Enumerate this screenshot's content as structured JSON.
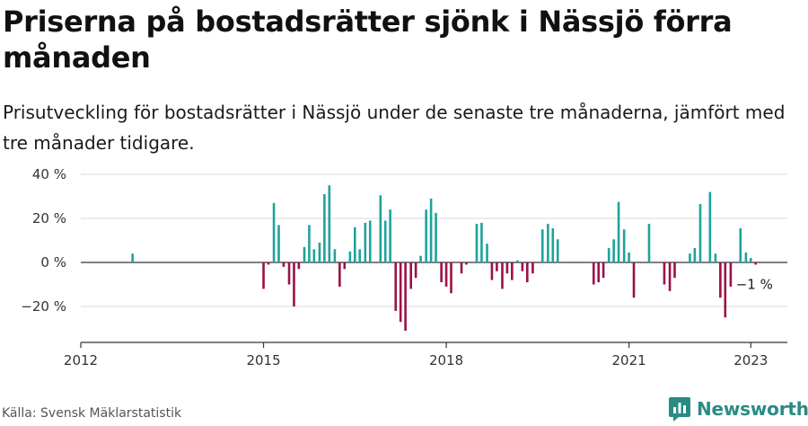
{
  "title": "Priserna på bostadsrätter sjönk i Nässjö förra månaden",
  "subtitle": "Prisutveckling för bostadsrätter i Nässjö under de senaste tre månaderna, jämfört med tre månader tidigare.",
  "source": "Källa: Svensk Mäklarstatistik",
  "brand": "Newsworthy",
  "colors": {
    "positive": "#1fa39b",
    "negative": "#9b1148",
    "grid": "#d9d9d9",
    "axis": "#333333",
    "brand": "#2a8b84"
  },
  "chart_data": {
    "type": "bar",
    "ylim": [
      -36,
      40
    ],
    "yticks": [
      40,
      20,
      0,
      -20
    ],
    "ytick_labels": [
      "40 %",
      "20 %",
      "0 %",
      "−20 %"
    ],
    "xlim": [
      2012.0,
      2023.6
    ],
    "xticks": [
      2012,
      2015,
      2018,
      2021,
      2023
    ],
    "xtick_labels": [
      "2012",
      "2015",
      "2018",
      "2021",
      "2023"
    ],
    "annotation": "−1 %",
    "series": [
      {
        "name": "Prisutveckling (%)",
        "points": [
          [
            2012.85,
            4
          ],
          [
            2015.0,
            -12
          ],
          [
            2015.08,
            -1
          ],
          [
            2015.17,
            27
          ],
          [
            2015.25,
            17
          ],
          [
            2015.33,
            -2
          ],
          [
            2015.42,
            -10
          ],
          [
            2015.5,
            -20
          ],
          [
            2015.58,
            -3
          ],
          [
            2015.67,
            7
          ],
          [
            2015.75,
            17
          ],
          [
            2015.83,
            6
          ],
          [
            2015.92,
            9
          ],
          [
            2016.0,
            31
          ],
          [
            2016.08,
            35
          ],
          [
            2016.17,
            6
          ],
          [
            2016.25,
            -11
          ],
          [
            2016.33,
            -3
          ],
          [
            2016.42,
            5
          ],
          [
            2016.5,
            16
          ],
          [
            2016.58,
            6
          ],
          [
            2016.67,
            18
          ],
          [
            2016.75,
            19
          ],
          [
            2016.83,
            0
          ],
          [
            2016.92,
            30.5
          ],
          [
            2017.0,
            19
          ],
          [
            2017.08,
            24
          ],
          [
            2017.17,
            -22
          ],
          [
            2017.25,
            -27
          ],
          [
            2017.33,
            -31
          ],
          [
            2017.42,
            -12
          ],
          [
            2017.5,
            -7
          ],
          [
            2017.58,
            3
          ],
          [
            2017.67,
            24
          ],
          [
            2017.75,
            29
          ],
          [
            2017.83,
            22.5
          ],
          [
            2017.92,
            -9
          ],
          [
            2018.0,
            -11
          ],
          [
            2018.08,
            -14
          ],
          [
            2018.17,
            0
          ],
          [
            2018.25,
            -5
          ],
          [
            2018.33,
            -1
          ],
          [
            2018.42,
            0
          ],
          [
            2018.5,
            17.5
          ],
          [
            2018.58,
            18
          ],
          [
            2018.67,
            8.5
          ],
          [
            2018.75,
            -8
          ],
          [
            2018.83,
            -4
          ],
          [
            2018.92,
            -12
          ],
          [
            2019.0,
            -5
          ],
          [
            2019.08,
            -8
          ],
          [
            2019.17,
            1
          ],
          [
            2019.25,
            -4
          ],
          [
            2019.33,
            -9
          ],
          [
            2019.42,
            -5
          ],
          [
            2019.5,
            0
          ],
          [
            2019.58,
            15
          ],
          [
            2019.67,
            17.5
          ],
          [
            2019.75,
            15.5
          ],
          [
            2019.83,
            10.5
          ],
          [
            2020.42,
            -10
          ],
          [
            2020.5,
            -9
          ],
          [
            2020.58,
            -7
          ],
          [
            2020.67,
            6.5
          ],
          [
            2020.75,
            10.5
          ],
          [
            2020.83,
            27.5
          ],
          [
            2020.92,
            15
          ],
          [
            2021.0,
            4.5
          ],
          [
            2021.08,
            -16
          ],
          [
            2021.33,
            17.5
          ],
          [
            2021.58,
            -10
          ],
          [
            2021.67,
            -13
          ],
          [
            2021.75,
            -7
          ],
          [
            2022.0,
            4
          ],
          [
            2022.08,
            6.5
          ],
          [
            2022.17,
            26.5
          ],
          [
            2022.33,
            32
          ],
          [
            2022.42,
            4
          ],
          [
            2022.5,
            -16
          ],
          [
            2022.58,
            -25
          ],
          [
            2022.67,
            -11
          ],
          [
            2022.83,
            15.5
          ],
          [
            2022.92,
            4.5
          ],
          [
            2023.0,
            2
          ],
          [
            2023.08,
            -1
          ]
        ]
      }
    ]
  }
}
